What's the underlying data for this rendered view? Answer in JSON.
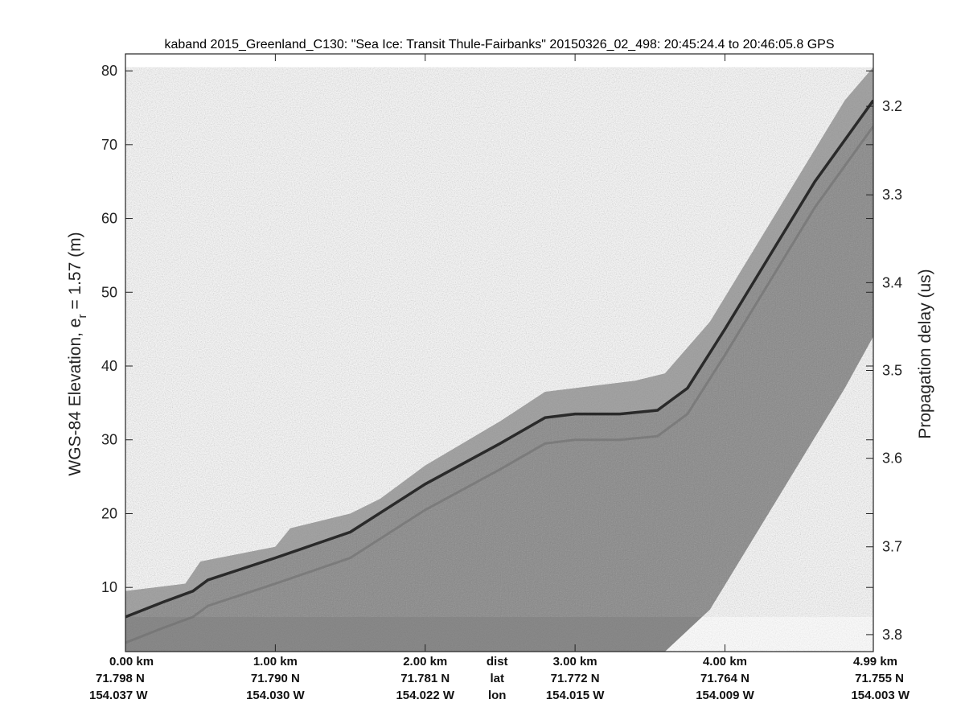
{
  "chart_data": {
    "type": "heatmap",
    "title": "kaband 2015_Greenland_C130: \"Sea Ice: Transit Thule-Fairbanks\"  20150326_02_498: 20:45:24.4 to 20:46:05.8 GPS",
    "ylabel_left_prefix": "WGS-84 Elevation, e",
    "ylabel_left_subscript": "r",
    "ylabel_left_suffix": " = 1.57 (m)",
    "ylabel_right": "Propagation delay (us)",
    "xlim_km": [
      0,
      4.99
    ],
    "ylim_m": [
      1.3,
      82.3
    ],
    "yticks_left": [
      10,
      20,
      30,
      40,
      50,
      60,
      70,
      80
    ],
    "yticks_right": [
      {
        "label": "3.2",
        "elev": 75.2
      },
      {
        "label": "3.3",
        "elev": 63.2
      },
      {
        "label": "3.4",
        "elev": 51.3
      },
      {
        "label": "3.5",
        "elev": 39.4
      },
      {
        "label": "3.6",
        "elev": 27.5
      },
      {
        "label": "3.7",
        "elev": 15.5
      },
      {
        "label": "3.8",
        "elev": 3.6
      }
    ],
    "xtick_rows": [
      {
        "name": "dist",
        "values": [
          "0.00 km",
          "1.00 km",
          "2.00 km",
          "3.00 km",
          "4.00 km",
          "4.99 km"
        ]
      },
      {
        "name": "lat",
        "values": [
          "71.798 N",
          "71.790 N",
          "71.781 N",
          "71.772 N",
          "71.764 N",
          "71.755 N"
        ]
      },
      {
        "name": "lon",
        "values": [
          "154.037 W",
          "154.030 W",
          "154.022 W",
          "154.015 W",
          "154.009 W",
          "154.003 W"
        ]
      }
    ],
    "xtick_positions_km": [
      0,
      1,
      2,
      3,
      4,
      4.99
    ],
    "row_labels_position_km": 2.48,
    "surface_profile": {
      "x_km": [
        0,
        0.25,
        0.45,
        0.55,
        1.0,
        1.5,
        2.0,
        2.5,
        2.8,
        3.0,
        3.3,
        3.55,
        3.75,
        4.0,
        4.3,
        4.6,
        4.99
      ],
      "elev_m": [
        6,
        8,
        9.5,
        11,
        14,
        17.5,
        24,
        29.5,
        33,
        33.5,
        33.5,
        34,
        37,
        45,
        55,
        65,
        76
      ]
    },
    "upper_edge_profile": {
      "x_km": [
        0,
        0.4,
        0.5,
        1.0,
        1.1,
        1.5,
        1.7,
        2.0,
        2.5,
        2.8,
        3.0,
        3.4,
        3.6,
        3.9,
        4.2,
        4.5,
        4.8,
        4.99
      ],
      "elev_m": [
        9.5,
        10.5,
        13.5,
        15.5,
        18,
        20,
        22,
        26.5,
        32.5,
        36.5,
        37,
        38,
        39,
        46,
        56,
        66,
        76,
        80.5
      ]
    },
    "lower_edge_profile": {
      "x_km": [
        3.6,
        3.9,
        4.2,
        4.5,
        4.8,
        4.99
      ],
      "elev_m": [
        1.3,
        7,
        17,
        27,
        37,
        44
      ]
    },
    "colors": {
      "background": "#ffffff",
      "data_fill": "#8c8c8c",
      "near_surface_band": "#a6a6a6",
      "surface_line": "#2a2a2a",
      "internal_layer": "#6c6c6c"
    }
  }
}
